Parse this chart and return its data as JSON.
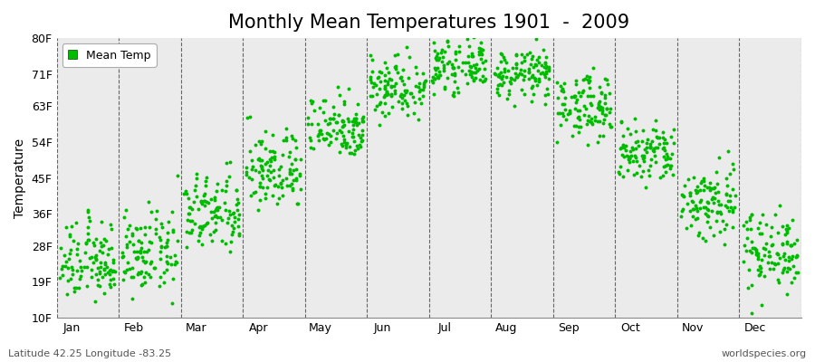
{
  "title": "Monthly Mean Temperatures 1901  -  2009",
  "ylabel": "Temperature",
  "bottom_left_text": "Latitude 42.25 Longitude -83.25",
  "bottom_right_text": "worldspecies.org",
  "legend_label": "Mean Temp",
  "ytick_labels": [
    "10F",
    "19F",
    "28F",
    "36F",
    "45F",
    "54F",
    "63F",
    "71F",
    "80F"
  ],
  "ytick_values": [
    10,
    19,
    28,
    36,
    45,
    54,
    63,
    71,
    80
  ],
  "ylim": [
    10,
    80
  ],
  "months": [
    "Jan",
    "Feb",
    "Mar",
    "Apr",
    "May",
    "Jun",
    "Jul",
    "Aug",
    "Sep",
    "Oct",
    "Nov",
    "Dec"
  ],
  "mean_temps_f": [
    24,
    26,
    36,
    47,
    58,
    68,
    73,
    71,
    63,
    51,
    39,
    27
  ],
  "std_temps_f": [
    5,
    5,
    5,
    5,
    4,
    4,
    3,
    3,
    4,
    4,
    5,
    5
  ],
  "n_years": 109,
  "dot_color": "#00BB00",
  "dot_size": 8,
  "background_color": "#FFFFFF",
  "plot_bg_color": "#EBEBEB",
  "grid_color": "#666666",
  "title_fontsize": 15,
  "axis_label_fontsize": 10,
  "tick_fontsize": 9,
  "annotation_fontsize": 8
}
